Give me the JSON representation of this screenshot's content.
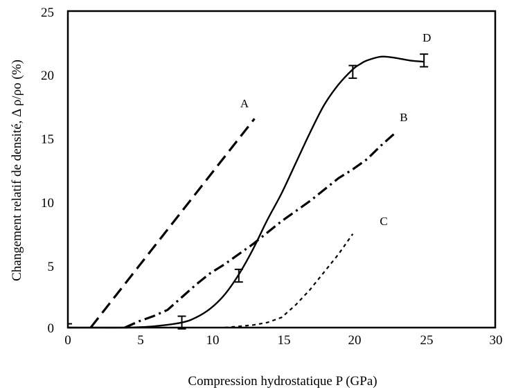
{
  "chart_data": {
    "type": "line",
    "title": "",
    "xlabel": "Compression hydrostatique P (GPa)",
    "ylabel": "Changement relatif de densité, Δ ρ/ρo (%)",
    "xlim": [
      0,
      30
    ],
    "ylim": [
      0,
      25
    ],
    "xticks": [
      "0",
      "5",
      "10",
      "15",
      "20",
      "25",
      "30"
    ],
    "yticks": [
      "0",
      "5",
      "10",
      "15",
      "20",
      "25"
    ],
    "grid": false,
    "series": [
      {
        "name": "A",
        "style": "long-dash",
        "x": [
          1.6,
          13.1
        ],
        "y": [
          0.0,
          16.5
        ]
      },
      {
        "name": "B",
        "style": "dash-dot",
        "x": [
          4.0,
          5.0,
          6.0,
          7.0,
          8.0,
          9.0,
          10.0,
          11.0,
          12.0,
          13.0,
          14.0,
          15.0,
          16.0,
          17.0,
          18.0,
          19.0,
          20.0,
          21.0,
          22.0,
          23.0
        ],
        "y": [
          0.0,
          0.5,
          0.9,
          1.4,
          2.4,
          3.4,
          4.3,
          5.0,
          5.8,
          6.6,
          7.5,
          8.4,
          9.2,
          10.0,
          10.9,
          11.8,
          12.5,
          13.3,
          14.4,
          15.4
        ]
      },
      {
        "name": "C",
        "style": "short-dash",
        "x": [
          11.0,
          12.0,
          13.0,
          14.0,
          15.0,
          16.0,
          17.0,
          18.0,
          19.0,
          20.0
        ],
        "y": [
          0.0,
          0.1,
          0.2,
          0.4,
          0.8,
          1.8,
          3.0,
          4.4,
          5.8,
          7.4
        ]
      },
      {
        "name": "D",
        "style": "solid",
        "x": [
          0,
          4.0,
          6.0,
          8.0,
          9.0,
          10.0,
          11.0,
          12.0,
          13.0,
          14.0,
          15.0,
          16.0,
          17.0,
          18.0,
          19.0,
          20.0,
          20.5,
          21.0,
          22.0,
          23.0,
          24.0,
          25.0
        ],
        "y": [
          0.0,
          0.0,
          0.1,
          0.4,
          0.8,
          1.5,
          2.6,
          4.2,
          6.2,
          8.5,
          10.6,
          13.0,
          15.4,
          17.6,
          19.2,
          20.4,
          20.8,
          21.1,
          21.4,
          21.3,
          21.1,
          21.0
        ],
        "error_bars": [
          {
            "x": 8,
            "y": 0.4,
            "err": 0.5
          },
          {
            "x": 12,
            "y": 4.1,
            "err": 0.5
          },
          {
            "x": 20,
            "y": 20.2,
            "err": 0.5
          },
          {
            "x": 25,
            "y": 21.1,
            "err": 0.5
          }
        ]
      }
    ],
    "labels": [
      {
        "text": "A",
        "x": 12.1,
        "y": 17.4
      },
      {
        "text": "B",
        "x": 23.3,
        "y": 16.3
      },
      {
        "text": "C",
        "x": 21.9,
        "y": 8.1
      },
      {
        "text": "D",
        "x": 24.9,
        "y": 22.6
      }
    ],
    "extra_points": [
      {
        "x": 0,
        "y": 0.3
      }
    ]
  }
}
